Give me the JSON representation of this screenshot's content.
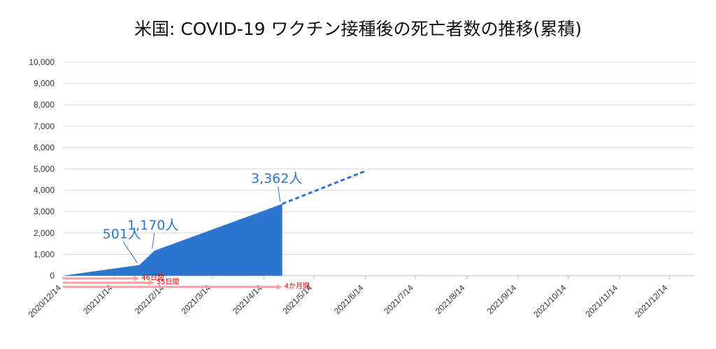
{
  "chart_data": {
    "type": "area",
    "title": "米国:  COVID-19 ワクチン接種後の死亡者数の推移(累積)",
    "xlabel": "",
    "ylabel": "",
    "ylim": [
      0,
      10000
    ],
    "yticks": [
      0,
      1000,
      2000,
      3000,
      4000,
      5000,
      6000,
      7000,
      8000,
      9000,
      10000
    ],
    "ytick_labels": [
      "0",
      "1,000",
      "2,000",
      "3,000",
      "4,000",
      "5,000",
      "6,000",
      "7,000",
      "8,000",
      "9,000",
      "10,000"
    ],
    "xlim": [
      "2020-12-14",
      "2021-12-29"
    ],
    "xtick_labels": [
      "2020/12/14",
      "2021/1/14",
      "2021/2/14",
      "2021/3/14",
      "2021/4/14",
      "2021/5/14",
      "2021/6/14",
      "2021/7/14",
      "2021/8/14",
      "2021/9/14",
      "2021/10/14",
      "2021/11/14",
      "2021/12/14"
    ],
    "xtick_dates": [
      "2020-12-14",
      "2021-01-14",
      "2021-02-14",
      "2021-03-14",
      "2021-04-14",
      "2021-05-14",
      "2021-06-14",
      "2021-07-14",
      "2021-08-14",
      "2021-09-14",
      "2021-10-14",
      "2021-11-14",
      "2021-12-14"
    ],
    "grid": true,
    "legend": "none",
    "series": [
      {
        "color": "#2E75D0",
        "points": [
          {
            "x": "2020-12-14",
            "y": 0
          },
          {
            "x": "2021-01-29",
            "y": 501
          },
          {
            "x": "2021-02-07",
            "y": 1170
          },
          {
            "x": "2021-04-25",
            "y": 3362
          }
        ]
      }
    ],
    "projection": {
      "color": "#2E75D0",
      "style": "dashed",
      "points": [
        {
          "x": "2021-04-25",
          "y": 3362
        },
        {
          "x": "2021-06-14",
          "y": 4900
        }
      ]
    },
    "annotations": [
      {
        "text": "501人",
        "x": "2021-01-29",
        "y": 501
      },
      {
        "text": "1,170人",
        "x": "2021-02-07",
        "y": 1170
      },
      {
        "text": "3,362人",
        "x": "2021-04-25",
        "y": 3362
      }
    ],
    "intervals": [
      {
        "label": "46日間",
        "from": "2020-12-14",
        "to": "2021-01-29"
      },
      {
        "label": "55日間",
        "from": "2020-12-14",
        "to": "2021-02-07"
      },
      {
        "label": "4か月間",
        "from": "2020-12-14",
        "to": "2021-04-25"
      }
    ],
    "colors": {
      "area": "#2E75D0",
      "callout": "#2E75D0",
      "arrow": "#F4A0A0",
      "interval_text": "#E00000",
      "grid": "#D9D9D9"
    }
  }
}
